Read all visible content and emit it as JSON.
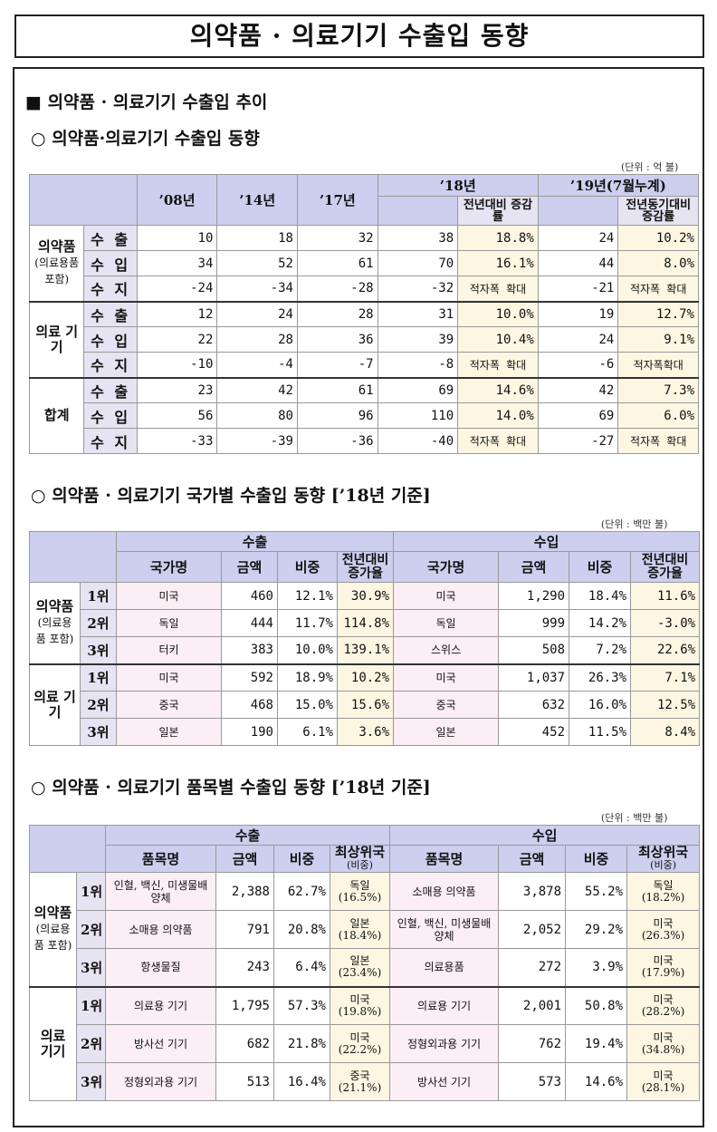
{
  "title": "의약품 · 의료기기 수출입 동향",
  "section_main": "■ 의약품 · 의료기기 수출입 추이",
  "s1": {
    "heading": "○ 의약품·의료기기 수출입 동향",
    "unit": "(단위 : 억 불)",
    "col_y08": "’08년",
    "col_y14": "’14년",
    "col_y17": "’17년",
    "col_y18": "’18년",
    "col_y19": "’19년(7월누계)",
    "col_chg18": "전년대비 증감률",
    "col_chg19": "전년동기대비 증감률",
    "groups": [
      {
        "name": "의약품",
        "sub": "(의료용품 포함)",
        "rows": [
          {
            "label": "수 출",
            "v08": "10",
            "v14": "18",
            "v17": "32",
            "v18": "38",
            "c18": "18.8%",
            "v19": "24",
            "c19": "10.2%"
          },
          {
            "label": "수 입",
            "v08": "34",
            "v14": "52",
            "v17": "61",
            "v18": "70",
            "c18": "16.1%",
            "v19": "44",
            "c19": "8.0%"
          },
          {
            "label": "수 지",
            "v08": "-24",
            "v14": "-34",
            "v17": "-28",
            "v18": "-32",
            "c18": "적자폭 확대",
            "v19": "-21",
            "c19": "적자폭 확대"
          }
        ]
      },
      {
        "name": "의료 기기",
        "sub": "",
        "rows": [
          {
            "label": "수 출",
            "v08": "12",
            "v14": "24",
            "v17": "28",
            "v18": "31",
            "c18": "10.0%",
            "v19": "19",
            "c19": "12.7%"
          },
          {
            "label": "수 입",
            "v08": "22",
            "v14": "28",
            "v17": "36",
            "v18": "39",
            "c18": "10.4%",
            "v19": "24",
            "c19": "9.1%"
          },
          {
            "label": "수 지",
            "v08": "-10",
            "v14": "-4",
            "v17": "-7",
            "v18": "-8",
            "c18": "적자폭 확대",
            "v19": "-6",
            "c19": "적자폭확대"
          }
        ]
      },
      {
        "name": "합계",
        "sub": "",
        "rows": [
          {
            "label": "수 출",
            "v08": "23",
            "v14": "42",
            "v17": "61",
            "v18": "69",
            "c18": "14.6%",
            "v19": "42",
            "c19": "7.3%"
          },
          {
            "label": "수 입",
            "v08": "56",
            "v14": "80",
            "v17": "96",
            "v18": "110",
            "c18": "14.0%",
            "v19": "69",
            "c19": "6.0%"
          },
          {
            "label": "수 지",
            "v08": "-33",
            "v14": "-39",
            "v17": "-36",
            "v18": "-40",
            "c18": "적자폭 확대",
            "v19": "-27",
            "c19": "적자폭 확대"
          }
        ]
      }
    ]
  },
  "s2": {
    "heading": "○ 의약품 · 의료기기 국가별 수출입 동향 [’18년 기준]",
    "unit": "(단위 : 백만 불)",
    "export": "수출",
    "import": "수입",
    "h_country": "국가명",
    "h_amount": "금액",
    "h_share": "비중",
    "h_growth": "전년대비 증가율",
    "groups": [
      {
        "name": "의약품",
        "sub": "(의료용품 포함)",
        "rows": [
          {
            "rank": "1위",
            "ec": "미국",
            "ea": "460",
            "es": "12.1%",
            "eg": "30.9%",
            "ic": "미국",
            "ia": "1,290",
            "is": "18.4%",
            "ig": "11.6%"
          },
          {
            "rank": "2위",
            "ec": "독일",
            "ea": "444",
            "es": "11.7%",
            "eg": "114.8%",
            "ic": "독일",
            "ia": "999",
            "is": "14.2%",
            "ig": "-3.0%"
          },
          {
            "rank": "3위",
            "ec": "터키",
            "ea": "383",
            "es": "10.0%",
            "eg": "139.1%",
            "ic": "스위스",
            "ia": "508",
            "is": "7.2%",
            "ig": "22.6%"
          }
        ]
      },
      {
        "name": "의료 기기",
        "sub": "",
        "rows": [
          {
            "rank": "1위",
            "ec": "미국",
            "ea": "592",
            "es": "18.9%",
            "eg": "10.2%",
            "ic": "미국",
            "ia": "1,037",
            "is": "26.3%",
            "ig": "7.1%"
          },
          {
            "rank": "2위",
            "ec": "중국",
            "ea": "468",
            "es": "15.0%",
            "eg": "15.6%",
            "ic": "중국",
            "ia": "632",
            "is": "16.0%",
            "ig": "12.5%"
          },
          {
            "rank": "3위",
            "ec": "일본",
            "ea": "190",
            "es": "6.1%",
            "eg": "3.6%",
            "ic": "일본",
            "ia": "452",
            "is": "11.5%",
            "ig": "8.4%"
          }
        ]
      }
    ]
  },
  "s3": {
    "heading": "○ 의약품 · 의료기기 품목별 수출입 동향 [’18년 기준]",
    "unit": "(단위 : 백만 불)",
    "export": "수출",
    "import": "수입",
    "h_item": "품목명",
    "h_amount": "금액",
    "h_share": "비중",
    "h_top": "최상위국",
    "h_top_sub": "(비중)",
    "groups": [
      {
        "name": "의약품",
        "sub": "(의료용품 포함)",
        "rows": [
          {
            "rank": "1위",
            "ei": "인혈, 백신, 미생물배양체",
            "ea": "2,388",
            "es": "62.7%",
            "et": "독일",
            "etp": "(16.5%)",
            "ii": "소매용 의약품",
            "ia": "3,878",
            "is": "55.2%",
            "it": "독일",
            "itp": "(18.2%)"
          },
          {
            "rank": "2위",
            "ei": "소매용 의약품",
            "ea": "791",
            "es": "20.8%",
            "et": "일본",
            "etp": "(18.4%)",
            "ii": "인혈, 백신, 미생물배양체",
            "ia": "2,052",
            "is": "29.2%",
            "it": "미국",
            "itp": "(26.3%)"
          },
          {
            "rank": "3위",
            "ei": "항생물질",
            "ea": "243",
            "es": "6.4%",
            "et": "일본",
            "etp": "(23.4%)",
            "ii": "의료용품",
            "ia": "272",
            "is": "3.9%",
            "it": "미국",
            "itp": "(17.9%)"
          }
        ]
      },
      {
        "name": "의료 기기",
        "sub": "",
        "rows": [
          {
            "rank": "1위",
            "ei": "의료용 기기",
            "ea": "1,795",
            "es": "57.3%",
            "et": "미국",
            "etp": "(19.8%)",
            "ii": "의료용 기기",
            "ia": "2,001",
            "is": "50.8%",
            "it": "미국",
            "itp": "(28.2%)"
          },
          {
            "rank": "2위",
            "ei": "방사선 기기",
            "ea": "682",
            "es": "21.8%",
            "et": "미국",
            "etp": "(22.2%)",
            "ii": "정형외과용 기기",
            "ia": "762",
            "is": "19.4%",
            "it": "미국",
            "itp": "(34.8%)"
          },
          {
            "rank": "3위",
            "ei": "정형외과용 기기",
            "ea": "513",
            "es": "16.4%",
            "et": "중국",
            "etp": "(21.1%)",
            "ii": "방사선 기기",
            "ia": "573",
            "is": "14.6%",
            "it": "미국",
            "itp": "(28.1%)"
          }
        ]
      }
    ]
  }
}
